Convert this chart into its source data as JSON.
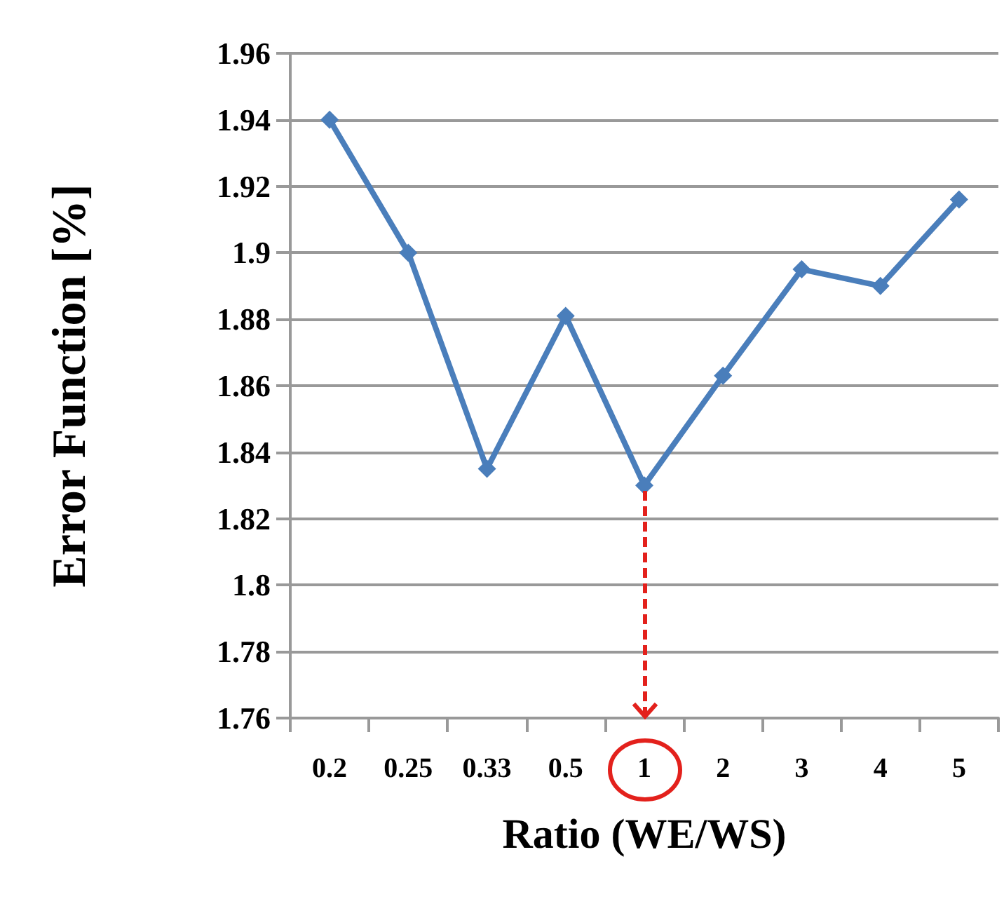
{
  "chart_data": {
    "type": "line",
    "xlabel": "Ratio (WE/WS)",
    "ylabel": "Error Function [%]",
    "categories": [
      "0.2",
      "0.25",
      "0.33",
      "0.5",
      "1",
      "2",
      "3",
      "4",
      "5"
    ],
    "series": [
      {
        "color": "#4a7ebb",
        "values": [
          1.94,
          1.9,
          1.835,
          1.881,
          1.83,
          1.863,
          1.895,
          1.89,
          1.916
        ]
      }
    ],
    "ylim": [
      1.76,
      1.96
    ],
    "yticks": [
      1.76,
      1.78,
      1.8,
      1.82,
      1.84,
      1.86,
      1.88,
      1.9,
      1.92,
      1.94,
      1.96
    ],
    "grid": "y",
    "marker": "diamond",
    "line_style": "solid"
  }
}
